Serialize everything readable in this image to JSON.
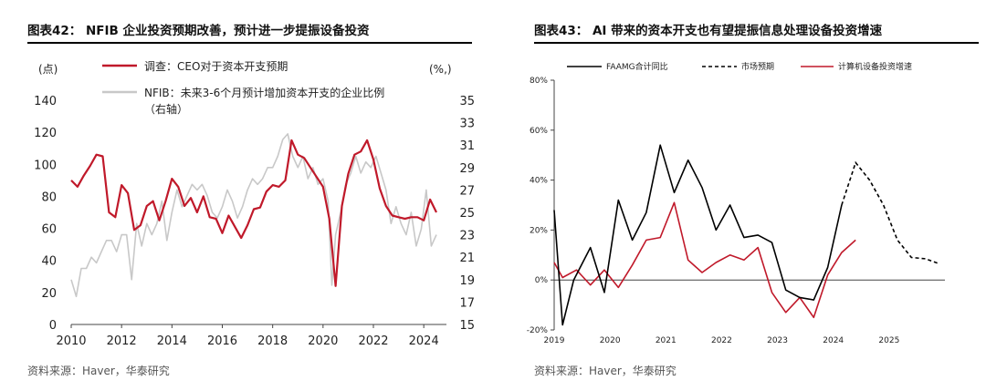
{
  "chart_data": [
    {
      "type": "line",
      "title": "图表42：  NFIB 企业投资预期改善，预计进一步提振设备投资",
      "left_unit": "(点)",
      "right_unit": "(%,)",
      "x_ticks": [
        "2010",
        "2012",
        "2014",
        "2016",
        "2018",
        "2020",
        "2022",
        "2024"
      ],
      "left_ticks": [
        "0",
        "20",
        "40",
        "60",
        "80",
        "100",
        "120",
        "140"
      ],
      "right_ticks": [
        "15",
        "17",
        "19",
        "21",
        "23",
        "25",
        "27",
        "29",
        "31",
        "33",
        "35"
      ],
      "xlim": [
        2010,
        2024.9
      ],
      "ylim_left": [
        0,
        140
      ],
      "ylim_right": [
        15,
        35
      ],
      "legend": [
        "调查：CEO对于资本开支预期",
        "NFIB：未来3-6个月预计增加资本开支的企业比例",
        "（右轴）"
      ],
      "series": [
        {
          "name": "调查：CEO对于资本开支预期",
          "axis": "left",
          "color": "#c0192a",
          "x": [
            2010.0,
            2010.25,
            2010.5,
            2010.75,
            2011.0,
            2011.25,
            2011.5,
            2011.75,
            2012.0,
            2012.25,
            2012.5,
            2012.75,
            2013.0,
            2013.25,
            2013.5,
            2013.75,
            2014.0,
            2014.25,
            2014.5,
            2014.75,
            2015.0,
            2015.25,
            2015.5,
            2015.75,
            2016.0,
            2016.25,
            2016.5,
            2016.75,
            2017.0,
            2017.25,
            2017.5,
            2017.75,
            2018.0,
            2018.25,
            2018.5,
            2018.75,
            2019.0,
            2019.25,
            2019.5,
            2019.75,
            2020.0,
            2020.25,
            2020.5,
            2020.75,
            2021.0,
            2021.25,
            2021.5,
            2021.75,
            2022.0,
            2022.25,
            2022.5,
            2022.75,
            2023.0,
            2023.25,
            2023.5,
            2023.75,
            2024.0,
            2024.25,
            2024.5
          ],
          "values": [
            90,
            86,
            93,
            99,
            106,
            105,
            70,
            67,
            87,
            82,
            59,
            62,
            74,
            77,
            65,
            77,
            91,
            86,
            74,
            79,
            70,
            80,
            67,
            66,
            57,
            68,
            61,
            54,
            62,
            72,
            73,
            83,
            87,
            86,
            90,
            115,
            106,
            104,
            98,
            92,
            86,
            66,
            24,
            74,
            94,
            106,
            108,
            115,
            103,
            85,
            74,
            68,
            67,
            66,
            67,
            67,
            65,
            78,
            70
          ]
        },
        {
          "name": "NFIB：未来3-6个月预计增加资本开支的企业比例",
          "axis": "right",
          "color": "#c8c8c8",
          "x": [
            2010.0,
            2010.2,
            2010.4,
            2010.6,
            2010.8,
            2011.0,
            2011.2,
            2011.4,
            2011.6,
            2011.8,
            2012.0,
            2012.2,
            2012.4,
            2012.6,
            2012.8,
            2013.0,
            2013.2,
            2013.4,
            2013.6,
            2013.8,
            2014.0,
            2014.2,
            2014.4,
            2014.6,
            2014.8,
            2015.0,
            2015.2,
            2015.4,
            2015.6,
            2015.8,
            2016.0,
            2016.2,
            2016.4,
            2016.6,
            2016.8,
            2017.0,
            2017.2,
            2017.4,
            2017.6,
            2017.8,
            2018.0,
            2018.2,
            2018.4,
            2018.6,
            2018.8,
            2019.0,
            2019.2,
            2019.4,
            2019.6,
            2019.8,
            2020.0,
            2020.2,
            2020.35,
            2020.5,
            2020.7,
            2020.9,
            2021.1,
            2021.3,
            2021.5,
            2021.7,
            2021.9,
            2022.1,
            2022.3,
            2022.5,
            2022.7,
            2022.9,
            2023.1,
            2023.3,
            2023.5,
            2023.7,
            2023.9,
            2024.1,
            2024.3,
            2024.5
          ],
          "values": [
            19,
            17.5,
            20,
            20,
            21,
            20.5,
            21.5,
            22.5,
            22.5,
            21.5,
            23,
            23,
            19,
            24,
            22,
            24,
            23,
            24,
            26,
            22.5,
            25,
            27,
            25.5,
            26.5,
            27.5,
            27,
            27.5,
            26.5,
            25,
            24.5,
            25.5,
            27,
            26,
            24.5,
            25.5,
            27,
            28,
            27.5,
            28,
            29,
            29,
            30,
            31.5,
            32,
            30,
            29,
            30,
            28,
            29,
            27.5,
            28,
            26,
            18.5,
            23,
            25,
            27.5,
            28.5,
            30,
            28.5,
            29.5,
            29,
            30,
            28.5,
            27,
            24,
            25.5,
            24,
            23,
            25,
            22,
            23.5,
            27,
            22,
            23
          ]
        }
      ]
    },
    {
      "type": "line",
      "title": "图表43：  AI 带来的资本开支也有望提振信息处理设备投资增速",
      "x_ticks": [
        "2019",
        "2020",
        "2021",
        "2022",
        "2023",
        "2024",
        "2025"
      ],
      "y_ticks": [
        "-20%",
        "0%",
        "20%",
        "40%",
        "60%",
        "80%"
      ],
      "xlim": [
        2019,
        2026
      ],
      "ylim": [
        -20,
        80
      ],
      "legend": [
        "FAAMG合计同比",
        "市场预期",
        "计算机设备投资增速"
      ],
      "series": [
        {
          "name": "FAAMG合计同比",
          "color": "#000000",
          "style": "solid",
          "x": [
            2019.0,
            2019.15,
            2019.35,
            2019.65,
            2019.9,
            2020.15,
            2020.4,
            2020.65,
            2020.9,
            2021.15,
            2021.4,
            2021.65,
            2021.9,
            2022.15,
            2022.4,
            2022.65,
            2022.9,
            2023.15,
            2023.4,
            2023.65,
            2023.9,
            2024.15
          ],
          "values": [
            28,
            -18,
            0,
            13,
            -5,
            32,
            16,
            27,
            54,
            35,
            48,
            37,
            20,
            30,
            17,
            18,
            15,
            -4,
            -7,
            -8,
            5,
            30
          ]
        },
        {
          "name": "市场预期",
          "color": "#000000",
          "style": "dashed",
          "x": [
            2024.15,
            2024.4,
            2024.65,
            2024.9,
            2025.15,
            2025.4,
            2025.65,
            2025.9
          ],
          "values": [
            30,
            47,
            40,
            30,
            16,
            9,
            8.5,
            6.5
          ]
        },
        {
          "name": "计算机设备投资增速",
          "color": "#c0192a",
          "style": "solid",
          "x": [
            2019.0,
            2019.15,
            2019.4,
            2019.65,
            2019.9,
            2020.15,
            2020.4,
            2020.65,
            2020.9,
            2021.15,
            2021.4,
            2021.65,
            2021.9,
            2022.15,
            2022.4,
            2022.65,
            2022.9,
            2023.15,
            2023.4,
            2023.65,
            2023.9,
            2024.15,
            2024.4
          ],
          "values": [
            7,
            1,
            4,
            -2,
            4,
            -3,
            6,
            16,
            17,
            31,
            8,
            3,
            7,
            10,
            8,
            13,
            -5,
            -13,
            -7,
            -15,
            2,
            11,
            16
          ]
        }
      ]
    }
  ],
  "sources": [
    "资料来源：Haver，华泰研究",
    "资料来源：Haver，华泰研究"
  ]
}
